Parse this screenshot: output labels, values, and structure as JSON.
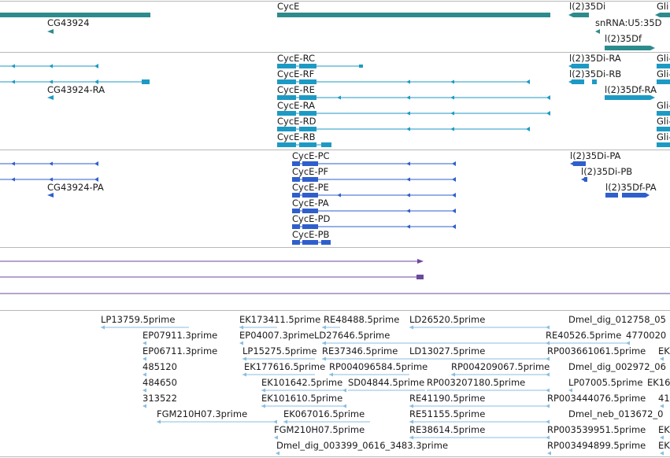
{
  "tracks": {
    "genes": {
      "labels": [
        "CycE",
        "CG43924",
        "l(2)35Di",
        "Gli",
        "snRNA:U5:35D",
        "l(2)35Df"
      ]
    },
    "transcripts": {
      "labels": [
        "CycE-RC",
        "CycE-RF",
        "CycE-RE",
        "CycE-RA",
        "CycE-RD",
        "CycE-RB",
        "CG43924-RA",
        "l(2)35Di-RA",
        "l(2)35Di-RB",
        "l(2)35Df-RA",
        "Gli-",
        "Gli-",
        "Gli-",
        "Gli-",
        "Gli-",
        "Gli-"
      ]
    },
    "proteins": {
      "labels": [
        "CycE-PC",
        "CycE-PF",
        "CycE-PE",
        "CycE-PA",
        "CycE-PD",
        "CycE-PB",
        "CG43924-PA",
        "l(2)35Di-PA",
        "l(2)35Di-PB",
        "l(2)35Df-PA"
      ]
    },
    "ests": {
      "labels": [
        "LP13759.5prime",
        "EK173411.5prime",
        "RE48488.5prime",
        "LD26520.5prime",
        "Dmel_dig_012758_05",
        "EP07911.3prime",
        "EP04007.3prime",
        "LD27646.5prime",
        "RE40526.5prime",
        "4770020",
        "EP06711.3prime",
        "LP15275.5prime",
        "RE37346.5prime",
        "LD13027.5prime",
        "RP003661061.5prime",
        "EK",
        "485120",
        "EK177616.5prime",
        "RP004096584.5prime",
        "RP004209067.5prime",
        "Dmel_dig_002972_06",
        "484650",
        "EK101642.5prime",
        "SD04844.5prime",
        "RP003207180.5prime",
        "LP07005.5prime",
        "EK16",
        "313522",
        "EK101610.5prime",
        "RE41190.5prime",
        "RP003444076.5prime",
        "41",
        "FGM210H07.3prime",
        "EK067016.5prime",
        "RE51155.5prime",
        "Dmel_neb_013672_0",
        "FGM210H07.5prime",
        "RE38614.5prime",
        "RP003539951.5prime",
        "EK",
        "Dmel_dig_003399_0616_3483.3prime",
        "RP003494899.5prime",
        "EK"
      ]
    }
  },
  "colors": {
    "gene": "#2e8b8b",
    "transcript": "#1d9ac4",
    "protein": "#2f5fcc",
    "sequence": "#6a4a9c",
    "est": "#89bde0",
    "divider": "#b8b8b8"
  }
}
